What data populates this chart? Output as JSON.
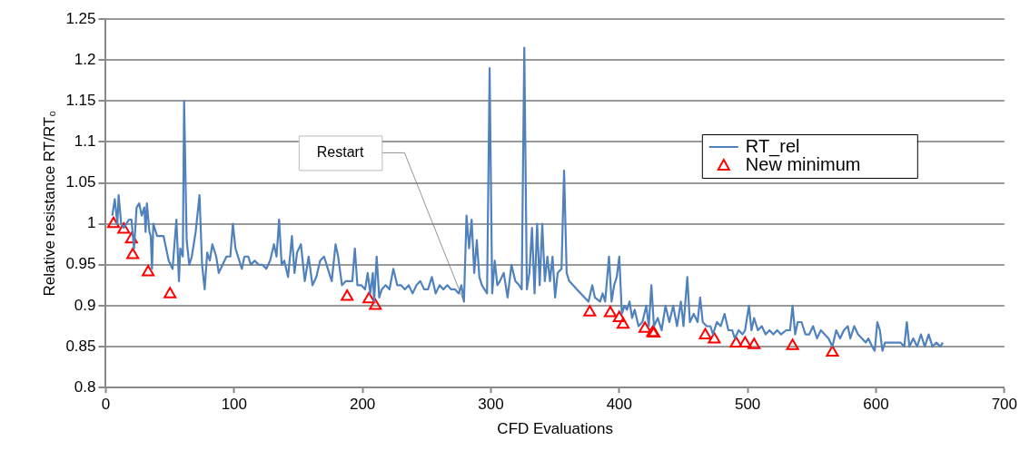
{
  "chart_data": {
    "type": "line",
    "xlabel": "CFD Evaluations",
    "ylabel": "Relative resistance RT/RT₀",
    "xlim": [
      0,
      700
    ],
    "xticks": [
      0,
      100,
      200,
      300,
      400,
      500,
      600,
      700
    ],
    "ylim": [
      0.8,
      1.25
    ],
    "yticks": [
      0.8,
      0.85,
      0.9,
      0.95,
      1,
      1.05,
      1.1,
      1.15,
      1.2,
      1.25
    ],
    "grid": "y",
    "legend": "top right",
    "annotations": [
      {
        "text": "Restart",
        "x": 279,
        "y": 0.905
      }
    ],
    "series": [
      {
        "name": "RT_rel",
        "type": "line",
        "marker": "none",
        "color": "#4f81bd",
        "x": [
          5,
          7,
          9,
          10,
          12,
          14,
          16,
          18,
          20,
          22,
          24,
          26,
          28,
          30,
          31,
          32,
          34,
          35,
          36,
          37,
          40,
          45,
          47,
          49,
          52,
          55,
          57,
          58,
          60,
          61,
          63,
          65,
          67,
          70,
          73,
          75,
          77,
          79,
          81,
          83,
          86,
          88,
          91,
          94,
          97,
          99,
          101,
          103,
          106,
          108,
          111,
          113,
          116,
          119,
          122,
          125,
          128,
          131,
          133,
          135,
          137,
          139,
          142,
          145,
          147,
          149,
          152,
          155,
          158,
          161,
          164,
          167,
          170,
          173,
          176,
          179,
          181,
          184,
          187,
          190,
          192,
          194,
          196,
          199,
          202,
          204,
          206,
          208,
          209,
          211,
          213,
          215,
          218,
          221,
          224,
          227,
          230,
          233,
          236,
          239,
          242,
          245,
          248,
          251,
          254,
          257,
          260,
          263,
          266,
          269,
          272,
          275,
          277,
          279,
          281,
          283,
          285,
          287,
          289,
          291,
          293,
          295,
          297,
          299,
          301,
          303,
          305,
          307,
          310,
          313,
          316,
          319,
          322,
          324,
          326,
          328,
          330,
          332,
          334,
          336,
          338,
          340,
          342,
          344,
          346,
          348,
          350,
          352,
          355,
          357,
          359,
          361,
          364,
          367,
          370,
          373,
          376,
          379,
          381,
          385,
          387,
          389,
          392,
          394,
          396,
          398,
          400,
          402,
          404,
          406,
          408,
          410,
          412,
          415,
          418,
          421,
          423,
          425,
          427,
          430,
          433,
          436,
          439,
          442,
          445,
          448,
          450,
          453,
          455,
          458,
          461,
          463,
          465,
          468,
          471,
          473,
          476,
          479,
          482,
          485,
          488,
          490,
          493,
          496,
          498,
          501,
          503,
          505,
          508,
          511,
          514,
          517,
          520,
          523,
          526,
          530,
          533,
          535,
          537,
          539,
          542,
          545,
          548,
          551,
          554,
          557,
          560,
          563,
          566,
          569,
          572,
          575,
          578,
          580,
          583,
          586,
          589,
          592,
          594,
          597,
          599,
          601,
          603,
          605,
          607,
          610,
          613,
          616,
          619,
          622,
          624,
          626,
          629,
          632,
          635,
          638,
          641,
          644,
          647,
          650,
          652
        ],
        "values": [
          1.01,
          1.03,
          1.0,
          1.035,
          1.0,
          0.995,
          1.0,
          1.005,
          1.005,
          0.97,
          1.02,
          1.025,
          1.01,
          1.02,
          0.99,
          1.025,
          0.99,
          0.985,
          0.945,
          1.0,
          0.985,
          0.985,
          0.97,
          0.955,
          0.945,
          1.005,
          0.93,
          0.97,
          0.96,
          1.15,
          0.98,
          0.95,
          0.96,
          0.99,
          1.035,
          0.95,
          0.92,
          0.965,
          0.955,
          0.975,
          0.96,
          0.94,
          0.95,
          0.96,
          0.96,
          1.0,
          0.97,
          0.96,
          0.945,
          0.96,
          0.96,
          0.95,
          0.955,
          0.95,
          0.95,
          0.945,
          0.955,
          0.975,
          0.96,
          1.005,
          0.95,
          0.955,
          0.935,
          0.985,
          0.94,
          0.965,
          0.975,
          0.93,
          0.96,
          0.925,
          0.935,
          0.955,
          0.96,
          0.945,
          0.93,
          0.975,
          0.96,
          0.925,
          0.93,
          0.93,
          0.93,
          0.97,
          0.925,
          0.925,
          0.92,
          0.94,
          0.915,
          0.94,
          0.905,
          0.96,
          0.91,
          0.92,
          0.925,
          0.92,
          0.945,
          0.925,
          0.925,
          0.92,
          0.925,
          0.915,
          0.925,
          0.93,
          0.92,
          0.92,
          0.935,
          0.915,
          0.925,
          0.92,
          0.925,
          0.92,
          0.92,
          0.915,
          0.925,
          0.905,
          1.01,
          0.97,
          1.005,
          0.94,
          0.98,
          0.935,
          0.925,
          0.92,
          0.915,
          1.19,
          0.915,
          0.955,
          0.925,
          0.93,
          0.94,
          0.91,
          0.95,
          0.93,
          0.925,
          0.92,
          1.215,
          0.92,
          0.94,
          0.995,
          0.915,
          1.0,
          0.925,
          1.0,
          0.93,
          0.96,
          0.93,
          0.96,
          0.91,
          0.94,
          0.945,
          1.065,
          0.94,
          0.93,
          0.925,
          0.92,
          0.915,
          0.91,
          0.905,
          0.925,
          0.91,
          0.905,
          0.915,
          0.905,
          0.96,
          0.905,
          0.925,
          0.935,
          0.96,
          0.89,
          0.9,
          0.895,
          0.905,
          0.885,
          0.895,
          0.875,
          0.88,
          0.9,
          0.875,
          0.925,
          0.875,
          0.885,
          0.87,
          0.9,
          0.88,
          0.9,
          0.875,
          0.905,
          0.875,
          0.935,
          0.88,
          0.89,
          0.88,
          0.91,
          0.88,
          0.875,
          0.875,
          0.865,
          0.88,
          0.875,
          0.89,
          0.87,
          0.87,
          0.86,
          0.87,
          0.865,
          0.87,
          0.9,
          0.87,
          0.885,
          0.87,
          0.875,
          0.865,
          0.87,
          0.865,
          0.87,
          0.865,
          0.87,
          0.87,
          0.9,
          0.865,
          0.88,
          0.88,
          0.865,
          0.865,
          0.875,
          0.86,
          0.87,
          0.865,
          0.86,
          0.85,
          0.87,
          0.86,
          0.87,
          0.875,
          0.86,
          0.875,
          0.865,
          0.86,
          0.855,
          0.86,
          0.85,
          0.845,
          0.88,
          0.87,
          0.845,
          0.855,
          0.855,
          0.855,
          0.855,
          0.855,
          0.85,
          0.88,
          0.85,
          0.86,
          0.85,
          0.865,
          0.85,
          0.865,
          0.85,
          0.855,
          0.85,
          0.855
        ]
      },
      {
        "name": "New minimum",
        "type": "scatter",
        "marker": "triangle",
        "color": "#ff0000",
        "x": [
          6,
          14,
          20,
          21,
          33,
          50,
          188,
          205,
          210,
          377,
          393,
          400,
          403,
          420,
          426,
          427,
          467,
          474,
          491,
          498,
          505,
          535,
          566
        ],
        "values": [
          1.0,
          0.993,
          0.981,
          0.962,
          0.941,
          0.914,
          0.911,
          0.908,
          0.9,
          0.892,
          0.891,
          0.885,
          0.877,
          0.872,
          0.867,
          0.866,
          0.864,
          0.859,
          0.854,
          0.854,
          0.852,
          0.851,
          0.843
        ]
      }
    ]
  }
}
